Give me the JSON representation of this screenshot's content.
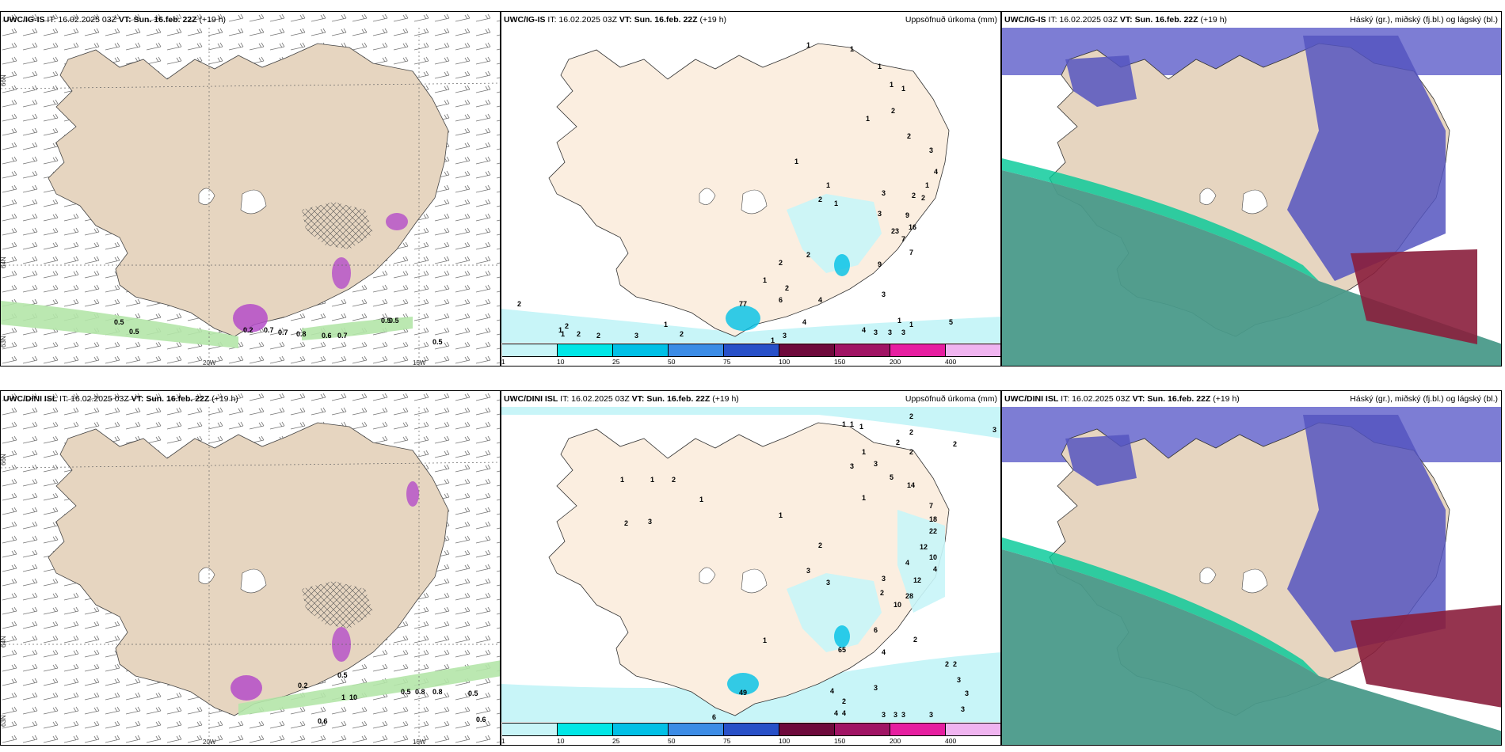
{
  "rows": [
    {
      "model": "UWC/IG-IS",
      "it": "IT: 16.02.2025 03Z",
      "vt_label": "VT:",
      "vt": "Sun. 16.feb. 22Z",
      "lead": "(+19 h)"
    },
    {
      "model": "UWC/DINI ISL",
      "it": "IT: 16.02.2025 03Z",
      "vt_label": "VT:",
      "vt": "Sun. 16.feb. 22Z",
      "lead": "(+19 h)"
    }
  ],
  "precip_title": "Uppsöfnuð úrkoma (mm)",
  "cloud_title": "Háský (gr.), miðský (fj.bl.) og lágský (bl.)",
  "axis_labels": {
    "lat66": "66N",
    "lat64": "64N",
    "lat63": "63N",
    "lon20": "20W",
    "lon15": "15W",
    "lat66r": "66N",
    "lat64r": "64N",
    "lat63r": "63N"
  },
  "colorbar": {
    "ticks": [
      "1",
      "10",
      "25",
      "50",
      "75",
      "100",
      "150",
      "200",
      "400"
    ],
    "colors": [
      "#c8f5f8",
      "#00e6e6",
      "#00c0e6",
      "#3c8ce6",
      "#2850c8",
      "#6e0a3c",
      "#a01464",
      "#e61ea0",
      "#f0b4f0"
    ]
  },
  "wind_labels_top": [
    "0.5",
    "0.5",
    "0.2",
    "0.7",
    "0.7",
    "0.8",
    "0.6",
    "0.7",
    "0.5",
    "0.5",
    "0.5"
  ],
  "wind_labels_bottom": [
    "0.5",
    "0.2",
    "1",
    "10",
    "0.5",
    "0.8",
    "0.8",
    "0.6",
    "0.5",
    "0.6"
  ],
  "precip_top": [
    "1",
    "1",
    "1",
    "1",
    "1",
    "2",
    "1",
    "1",
    "2",
    "1",
    "3",
    "4",
    "1",
    "3",
    "2",
    "1",
    "2",
    "2",
    "9",
    "3",
    "7",
    "16",
    "23",
    "2",
    "7",
    "9",
    "2",
    "1",
    "3",
    "4",
    "1",
    "1",
    "1",
    "1",
    "2",
    "6",
    "2",
    "2",
    "2",
    "1",
    "3",
    "4",
    "4",
    "3",
    "3",
    "3",
    "2",
    "2",
    "1",
    "77",
    "3",
    "5"
  ],
  "precip_bottom": [
    "1",
    "1",
    "1",
    "2",
    "2",
    "2",
    "2",
    "3",
    "2",
    "3",
    "5",
    "1",
    "3",
    "3",
    "2",
    "1",
    "1",
    "1",
    "1",
    "1",
    "14",
    "7",
    "18",
    "22",
    "12",
    "10",
    "4",
    "4",
    "12",
    "28",
    "10",
    "3",
    "2",
    "3",
    "3",
    "2",
    "6",
    "4",
    "2",
    "2",
    "2",
    "3",
    "3",
    "4",
    "4",
    "2",
    "4",
    "3",
    "3",
    "3",
    "3",
    "3",
    "49",
    "65",
    "6",
    "1",
    "2",
    "3"
  ],
  "colors": {
    "land": "#e6d5c0",
    "land_precip": "#fbeee0",
    "snow_high": "#6666cc",
    "cloud_low": "#4a9a8a",
    "wine": "#8a1e3c",
    "green_light": "#b4e6a8",
    "magenta": "#b44cc8"
  }
}
